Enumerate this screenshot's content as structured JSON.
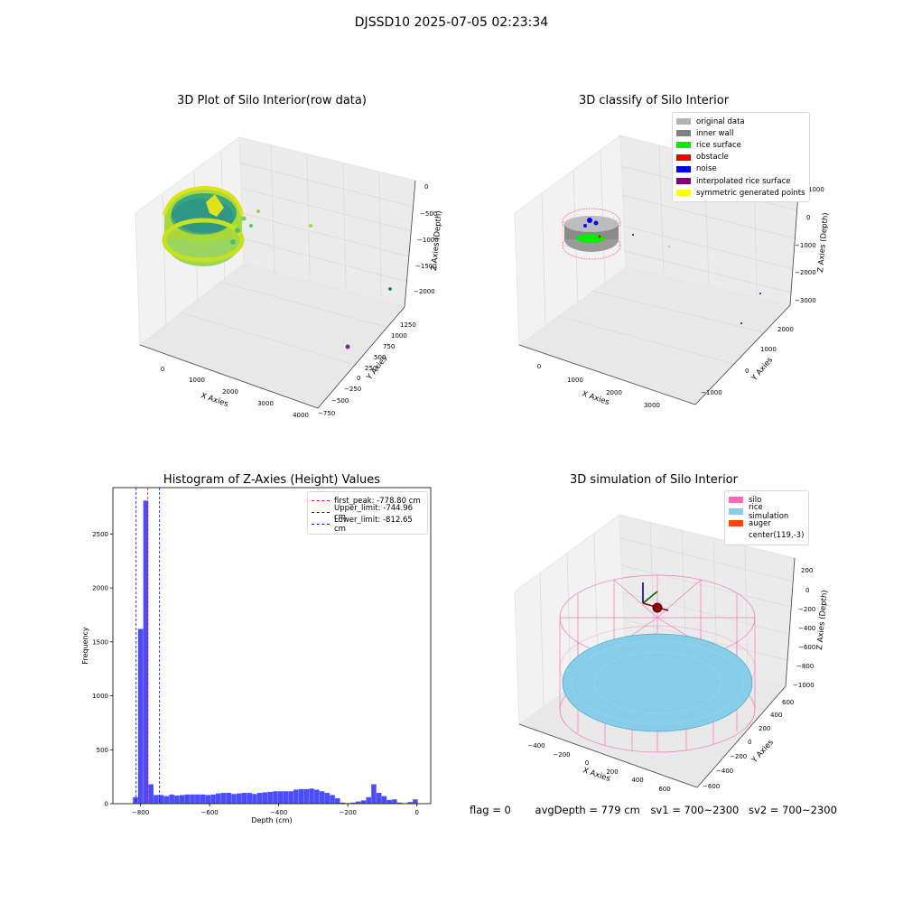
{
  "suptitle": "DJSSD10 2025-07-05 02:23:34",
  "panels": {
    "raw": {
      "title": "3D Plot of Silo Interior(row data)",
      "xlabel": "X Axies",
      "ylabel": "Y Axies",
      "zlabel": "Z Axies (Depth)",
      "xticks": [
        "0",
        "1000",
        "2000",
        "3000",
        "4000"
      ],
      "yticks": [
        "−750",
        "−500",
        "−250",
        "0",
        "250",
        "500",
        "750",
        "1000",
        "1250"
      ],
      "zticks": [
        "0",
        "−500",
        "−1000",
        "−1500",
        "−2000"
      ]
    },
    "classify": {
      "title": "3D classify of Silo Interior",
      "xlabel": "X Axies",
      "ylabel": "Y Axies",
      "zlabel": "Z Axies (Depth)",
      "xticks": [
        "0",
        "1000",
        "2000",
        "3000"
      ],
      "yticks": [
        "−1000",
        "0",
        "1000",
        "2000"
      ],
      "zticks": [
        "1000",
        "0",
        "−1000",
        "−2000",
        "−3000"
      ],
      "legend": [
        {
          "label": "original data",
          "color": "#b3b3b3"
        },
        {
          "label": "inner wall",
          "color": "#808080"
        },
        {
          "label": "rice surface",
          "color": "#00ee00"
        },
        {
          "label": "obstacle",
          "color": "#ee0000"
        },
        {
          "label": "noise",
          "color": "#0000ee"
        },
        {
          "label": "interpolated rice surface",
          "color": "#800080"
        },
        {
          "label": "symmetric generated points",
          "color": "#ffff00"
        }
      ]
    },
    "hist": {
      "title": "Histogram of Z-Axies (Height) Values",
      "legend": [
        {
          "label": "first_peak: -778.80 cm",
          "color": "#ff0000"
        },
        {
          "label": "Upper_limit: -744.96 cm",
          "color": "#0000ff"
        },
        {
          "label": "Lower_limit: -812.65 cm",
          "color": "#0000ff"
        }
      ]
    },
    "sim": {
      "title": "3D simulation of Silo Interior",
      "xlabel": "X Axies",
      "ylabel": "Y Axies",
      "zlabel": "Z Axies (Depth)",
      "xticks": [
        "−400",
        "−200",
        "0",
        "200",
        "400",
        "600"
      ],
      "yticks": [
        "−600",
        "−400",
        "−200",
        "0",
        "200",
        "400",
        "600"
      ],
      "zticks": [
        "200",
        "0",
        "−200",
        "−400",
        "−600",
        "−800",
        "−1000"
      ],
      "legend": [
        {
          "label": "silo",
          "color": "#ff69b4"
        },
        {
          "label": "rice simulation",
          "color": "#87ceeb"
        },
        {
          "label": "auger",
          "color": "#ff4500"
        },
        {
          "label": "center(119,-3)",
          "color": "#ffffff"
        }
      ]
    }
  },
  "footer": {
    "flag": "flag = 0",
    "avg_depth": "avgDepth = 779 cm",
    "sv1": "sv1 = 700~2300",
    "sv2": "sv2 = 700~2300"
  },
  "chart_data": [
    {
      "type": "scatter",
      "title": "3D Plot of Silo Interior(row data)",
      "xlabel": "X Axies",
      "ylabel": "Y Axies",
      "zlabel": "Z Axies (Depth)",
      "xlim": [
        -500,
        4000
      ],
      "ylim": [
        -750,
        1300
      ],
      "zlim": [
        -2300,
        100
      ],
      "note_points": [
        {
          "x": 1300,
          "y": 700,
          "z": -600
        },
        {
          "x": 2000,
          "y": 600,
          "z": -900
        },
        {
          "x": 3700,
          "y": 800,
          "z": -2000
        },
        {
          "x": 3600,
          "y": 100,
          "z": -2200
        }
      ]
    },
    {
      "type": "scatter",
      "title": "3D classify of Silo Interior",
      "xlabel": "X Axies",
      "ylabel": "Y Axies",
      "zlabel": "Z Axies (Depth)",
      "xlim": [
        -500,
        3500
      ],
      "ylim": [
        -1500,
        2500
      ],
      "zlim": [
        -3300,
        1200
      ],
      "series": [
        {
          "name": "original data"
        },
        {
          "name": "inner wall"
        },
        {
          "name": "rice surface"
        },
        {
          "name": "obstacle"
        },
        {
          "name": "noise"
        },
        {
          "name": "interpolated rice surface"
        },
        {
          "name": "symmetric generated points"
        }
      ]
    },
    {
      "type": "bar",
      "title": "Histogram of Z-Axies (Height) Values",
      "xlabel": "Depth (cm)",
      "ylabel": "Frequency",
      "xlim": [
        -880,
        40
      ],
      "ylim": [
        0,
        2930
      ],
      "xticks": [
        -800,
        -600,
        -400,
        -200,
        0
      ],
      "yticks": [
        0,
        500,
        1000,
        1500,
        2000,
        2500
      ],
      "bar_color": "#0000ff",
      "bins": [
        {
          "x0": -822,
          "x1": -807,
          "value": 60
        },
        {
          "x0": -807,
          "x1": -792,
          "value": 1620
        },
        {
          "x0": -792,
          "x1": -777,
          "value": 2810
        },
        {
          "x0": -777,
          "x1": -762,
          "value": 180
        },
        {
          "x0": -762,
          "x1": -747,
          "value": 80
        },
        {
          "x0": -747,
          "x1": -732,
          "value": 80
        },
        {
          "x0": -732,
          "x1": -717,
          "value": 70
        },
        {
          "x0": -717,
          "x1": -702,
          "value": 85
        },
        {
          "x0": -702,
          "x1": -687,
          "value": 75
        },
        {
          "x0": -687,
          "x1": -672,
          "value": 80
        },
        {
          "x0": -672,
          "x1": -657,
          "value": 85
        },
        {
          "x0": -657,
          "x1": -642,
          "value": 85
        },
        {
          "x0": -642,
          "x1": -627,
          "value": 85
        },
        {
          "x0": -627,
          "x1": -612,
          "value": 85
        },
        {
          "x0": -612,
          "x1": -597,
          "value": 80
        },
        {
          "x0": -597,
          "x1": -582,
          "value": 85
        },
        {
          "x0": -582,
          "x1": -567,
          "value": 95
        },
        {
          "x0": -567,
          "x1": -552,
          "value": 100
        },
        {
          "x0": -552,
          "x1": -537,
          "value": 100
        },
        {
          "x0": -537,
          "x1": -522,
          "value": 90
        },
        {
          "x0": -522,
          "x1": -507,
          "value": 95
        },
        {
          "x0": -507,
          "x1": -492,
          "value": 100
        },
        {
          "x0": -492,
          "x1": -477,
          "value": 100
        },
        {
          "x0": -477,
          "x1": -462,
          "value": 90
        },
        {
          "x0": -462,
          "x1": -447,
          "value": 100
        },
        {
          "x0": -447,
          "x1": -432,
          "value": 105
        },
        {
          "x0": -432,
          "x1": -417,
          "value": 110
        },
        {
          "x0": -417,
          "x1": -402,
          "value": 115
        },
        {
          "x0": -402,
          "x1": -387,
          "value": 115
        },
        {
          "x0": -387,
          "x1": -372,
          "value": 115
        },
        {
          "x0": -372,
          "x1": -357,
          "value": 115
        },
        {
          "x0": -357,
          "x1": -342,
          "value": 130
        },
        {
          "x0": -342,
          "x1": -327,
          "value": 135
        },
        {
          "x0": -327,
          "x1": -312,
          "value": 135
        },
        {
          "x0": -312,
          "x1": -297,
          "value": 140
        },
        {
          "x0": -297,
          "x1": -282,
          "value": 130
        },
        {
          "x0": -282,
          "x1": -267,
          "value": 115
        },
        {
          "x0": -267,
          "x1": -252,
          "value": 100
        },
        {
          "x0": -252,
          "x1": -237,
          "value": 80
        },
        {
          "x0": -237,
          "x1": -222,
          "value": 50
        },
        {
          "x0": -222,
          "x1": -207,
          "value": 10
        },
        {
          "x0": -207,
          "x1": -192,
          "value": 5
        },
        {
          "x0": -192,
          "x1": -177,
          "value": 10
        },
        {
          "x0": -177,
          "x1": -162,
          "value": 20
        },
        {
          "x0": -162,
          "x1": -147,
          "value": 30
        },
        {
          "x0": -147,
          "x1": -132,
          "value": 60
        },
        {
          "x0": -132,
          "x1": -117,
          "value": 180
        },
        {
          "x0": -117,
          "x1": -102,
          "value": 100
        },
        {
          "x0": -102,
          "x1": -87,
          "value": 70
        },
        {
          "x0": -87,
          "x1": -72,
          "value": 35
        },
        {
          "x0": -72,
          "x1": -57,
          "value": 40
        },
        {
          "x0": -57,
          "x1": -42,
          "value": 10
        },
        {
          "x0": -42,
          "x1": -27,
          "value": 5
        },
        {
          "x0": -27,
          "x1": -12,
          "value": 15
        },
        {
          "x0": -12,
          "x1": 3,
          "value": 40
        }
      ],
      "vlines": [
        {
          "name": "first_peak",
          "x": -778.8,
          "color": "#ff0000"
        },
        {
          "name": "Upper_limit",
          "x": -744.96,
          "color": "#0000ff"
        },
        {
          "name": "Lower_limit",
          "x": -812.65,
          "color": "#0000ff"
        }
      ]
    },
    {
      "type": "scatter",
      "title": "3D simulation of Silo Interior",
      "xlabel": "X Axies",
      "ylabel": "Y Axies",
      "zlabel": "Z Axies (Depth)",
      "xlim": [
        -500,
        700
      ],
      "ylim": [
        -700,
        700
      ],
      "zlim": [
        -1050,
        300
      ],
      "center": [
        119,
        -3
      ],
      "series": [
        {
          "name": "silo"
        },
        {
          "name": "rice simulation"
        },
        {
          "name": "auger"
        }
      ]
    }
  ]
}
